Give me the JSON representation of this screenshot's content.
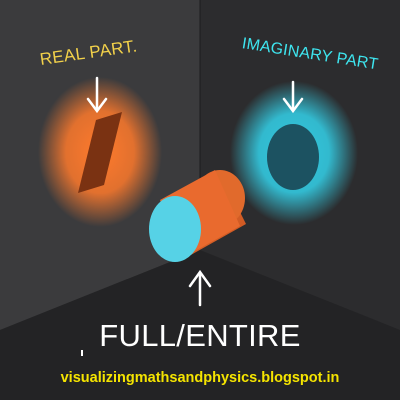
{
  "labels": {
    "real": "REAL PART.",
    "imaginary": "IMAGINARY PART",
    "full": "FULL/ENTIRE",
    "url": "visualizingmathsandphysics.blogspot.in"
  },
  "colors": {
    "real_label": "#f2d14a",
    "imaginary_label": "#3ee6f0",
    "full_label": "#ffffff",
    "url_label": "#f5e400",
    "left_wall": "#3b3b3d",
    "right_wall": "#2c2c2e",
    "floor": "#232325",
    "orange_glow": "#ff7a2c",
    "orange_body": "#e96a2e",
    "cyan_glow": "#33c9e0",
    "cyan_face": "#56d2e6",
    "arrow": "#ffffff"
  },
  "icons": {
    "real": "arrow-down-icon",
    "imaginary": "arrow-down-icon",
    "full": "arrow-up-icon"
  }
}
